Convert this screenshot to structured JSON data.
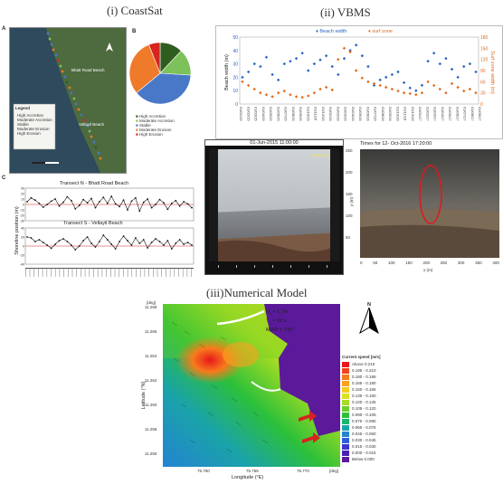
{
  "titles": {
    "coastsat": "(i) CoastSat",
    "vbms": "(ii) VBMS",
    "numerical": "(iii)Numerical Model"
  },
  "coastsat": {
    "map": {
      "panel_label": "A",
      "legend_title": "Legend",
      "labels": [
        "Bhatt Road Beach",
        "Vellayil Beach"
      ],
      "legend_items": [
        "High Accretion",
        "Moderate Accretion",
        "Stable",
        "Moderate Erosion",
        "High Erosion"
      ]
    },
    "pie": {
      "panel_label": "B",
      "slices": [
        {
          "name": "High Accretion",
          "value": 12,
          "color": "#2e5d1f"
        },
        {
          "name": "Moderate Accretion",
          "value": 14,
          "color": "#7cc15a"
        },
        {
          "name": "Stable",
          "value": 38,
          "color": "#4a78c8"
        },
        {
          "name": "Moderate Erosion",
          "value": 30,
          "color": "#ee7a2a"
        },
        {
          "name": "High Erosion",
          "value": 6,
          "color": "#d6241f"
        }
      ],
      "legend": [
        "High Accretion",
        "Moderate Accretion",
        "Stable",
        "Moderate Erosion",
        "High Erosion"
      ]
    },
    "transects": {
      "panel_label": "C",
      "ylabel": "Shoreline position (m)",
      "chart_a": {
        "title": "Transect N - Bhatt Road Beach",
        "yticks": [
          "30",
          "20",
          "10",
          "0",
          "-10",
          "-20",
          "-30"
        ],
        "values": [
          5,
          12,
          8,
          2,
          -5,
          0,
          6,
          10,
          -3,
          4,
          14,
          7,
          -8,
          -2,
          9,
          3,
          11,
          -6,
          5,
          13,
          2,
          15,
          1,
          -4,
          8,
          -10,
          6,
          12,
          -12,
          4,
          10,
          -6,
          0,
          9,
          3,
          -9,
          2,
          7,
          -3,
          5,
          1,
          -6
        ]
      },
      "chart_b": {
        "title": "Transect S - Vellayil Beach",
        "yticks": [
          "40",
          "20",
          "0",
          "-20",
          "-40"
        ],
        "values": [
          20,
          18,
          10,
          14,
          8,
          2,
          -5,
          4,
          12,
          16,
          10,
          2,
          -8,
          0,
          12,
          20,
          6,
          -2,
          10,
          24,
          14,
          4,
          -6,
          10,
          22,
          12,
          2,
          18,
          6,
          14,
          -4,
          8,
          16,
          10,
          2,
          12,
          -6,
          6,
          14,
          4,
          8,
          2
        ]
      }
    }
  },
  "vbms": {
    "chart": {
      "legend": [
        "Beach width",
        "surf zone"
      ],
      "ylabel_left": "Beach width (m)",
      "ylabel_right": "Surf zone width (m)",
      "yticks_left": [
        "50",
        "40",
        "30",
        "20",
        "10",
        "0"
      ],
      "yticks_right": [
        "180",
        "150",
        "120",
        "90",
        "60",
        "30",
        "0"
      ],
      "beach_width": [
        20,
        24,
        30,
        28,
        35,
        22,
        18,
        30,
        32,
        34,
        38,
        25,
        30,
        33,
        36,
        28,
        22,
        34,
        40,
        44,
        36,
        28,
        14,
        18,
        20,
        22,
        24,
        16,
        12,
        10,
        14,
        32,
        38,
        30,
        34,
        26,
        20,
        28,
        30,
        24
      ],
      "surf_zone": [
        60,
        50,
        40,
        30,
        25,
        20,
        30,
        35,
        25,
        20,
        18,
        22,
        30,
        40,
        45,
        38,
        120,
        150,
        140,
        90,
        70,
        60,
        55,
        50,
        45,
        40,
        35,
        30,
        28,
        25,
        30,
        60,
        50,
        40,
        30,
        55,
        45,
        35,
        40,
        30
      ],
      "xticks": [
        "01/01/15",
        "01/02/15",
        "01/03/15",
        "01/04/15",
        "01/05/15",
        "01/06/15",
        "01/07/15",
        "01/08/15",
        "01/09/15",
        "01/10/15",
        "01/11/15",
        "01/12/15",
        "01/01/16",
        "01/02/16",
        "01/03/16",
        "01/04/16",
        "01/05/16",
        "01/06/16",
        "01/07/16",
        "01/08/16",
        "01/09/16",
        "01/10/16",
        "01/11/16",
        "01/12/16",
        "01/01/17",
        "01/02/17",
        "01/03/17",
        "01/04/17",
        "01/05/17",
        "01/06/17",
        "01/07/17",
        "01/08/17",
        "01/09/17"
      ]
    },
    "photo1": {
      "caption": "01-Jun-2015 11:00:00",
      "corner": "Camera 1"
    },
    "photo2": {
      "caption": "Timex for 12- Oct-2016   17:20:00",
      "yticks": [
        "250",
        "200",
        "150",
        "100",
        "50"
      ],
      "xticks": [
        "0",
        "50",
        "100",
        "150",
        "200",
        "250",
        "300",
        "350",
        "400"
      ],
      "xlabel": "x (m)",
      "ylabel": "y (m)"
    }
  },
  "numerical": {
    "params": [
      {
        "label": "H",
        "sub": "s",
        "value": "= 1.7m"
      },
      {
        "label": "T",
        "sub": "p",
        "value": "= 18 s"
      },
      {
        "label": "MWD",
        "sub": "",
        "value": "= 235°"
      }
    ],
    "unit_top": "[deg]",
    "unit_right": "[deg]",
    "yticks": [
      "11.268",
      "11.266",
      "11.264",
      "11.262",
      "11.260",
      "11.258",
      "11.256"
    ],
    "xticks": [
      "75.760",
      "75.765",
      "75.770"
    ],
    "ylabel": "Latitude (°N)",
    "xlabel": "Longitude (°E)",
    "north_label": "N",
    "legend_title": "Current speed [m/s]",
    "legend": [
      {
        "label": "Above 0.210",
        "color": "#e8171c"
      },
      {
        "label": "0.195 - 0.210",
        "color": "#f1441b"
      },
      {
        "label": "0.180 - 0.195",
        "color": "#f77a1c"
      },
      {
        "label": "0.165 - 0.180",
        "color": "#fba21e"
      },
      {
        "label": "0.150 - 0.165",
        "color": "#f5cc1f"
      },
      {
        "label": "0.135 - 0.150",
        "color": "#d9e21f"
      },
      {
        "label": "0.120 - 0.135",
        "color": "#a7dc22"
      },
      {
        "label": "0.105 - 0.120",
        "color": "#6ccf27"
      },
      {
        "label": "0.090 - 0.105",
        "color": "#2cc03a"
      },
      {
        "label": "0.075 - 0.090",
        "color": "#17b770"
      },
      {
        "label": "0.060 - 0.075",
        "color": "#1aa3a8"
      },
      {
        "label": "0.045 - 0.060",
        "color": "#2384d2"
      },
      {
        "label": "0.030 - 0.045",
        "color": "#2d5ee0"
      },
      {
        "label": "0.015 - 0.030",
        "color": "#3a35d4"
      },
      {
        "label": "0.000 - 0.015",
        "color": "#4a1fb8"
      },
      {
        "label": "Below 0.000",
        "color": "#5a1a9a"
      }
    ]
  }
}
